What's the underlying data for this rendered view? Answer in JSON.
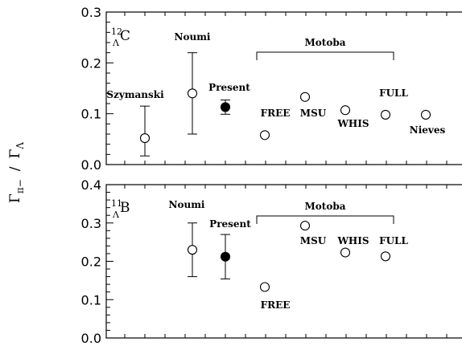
{
  "chart_data": {
    "type": "scatter",
    "ylabel": {
      "gamma": "Γ",
      "sub_pi": "π−",
      "slash": "/",
      "sub_lambda": "Λ"
    },
    "panels": [
      {
        "nucleus": {
          "mass": "12",
          "hyperon": "Λ",
          "element": "C"
        },
        "ylim": [
          0,
          0.3
        ],
        "yticks": [
          "0.0",
          "0.1",
          "0.2",
          "0.3"
        ],
        "bracket_label": "Motoba",
        "points": [
          {
            "label": "Szymanski",
            "y": 0.052,
            "err_lo": 0.035,
            "err_hi": 0.063,
            "filled": false
          },
          {
            "label": "Noumi",
            "y": 0.14,
            "err_lo": 0.08,
            "err_hi": 0.08,
            "filled": false
          },
          {
            "label": "Present",
            "y": 0.113,
            "err_lo": 0.014,
            "err_hi": 0.014,
            "filled": true
          },
          {
            "label": "FREE",
            "y": 0.058,
            "filled": false
          },
          {
            "label": "MSU",
            "y": 0.133,
            "filled": false
          },
          {
            "label": "WHIS",
            "y": 0.107,
            "filled": false
          },
          {
            "label": "FULL",
            "y": 0.098,
            "filled": false
          },
          {
            "label": "Nieves",
            "y": 0.098,
            "filled": false
          }
        ]
      },
      {
        "nucleus": {
          "mass": "11",
          "hyperon": "Λ",
          "element": "B"
        },
        "ylim": [
          0,
          0.4
        ],
        "yticks": [
          "0.0",
          "0.1",
          "0.2",
          "0.3",
          "0.4"
        ],
        "bracket_label": "Motoba",
        "points": [
          {
            "label": "Noumi",
            "y": 0.23,
            "err_lo": 0.07,
            "err_hi": 0.07,
            "filled": false
          },
          {
            "label": "Present",
            "y": 0.212,
            "err_lo": 0.058,
            "err_hi": 0.058,
            "filled": true
          },
          {
            "label": "FREE",
            "y": 0.133,
            "filled": false
          },
          {
            "label": "MSU",
            "y": 0.293,
            "filled": false
          },
          {
            "label": "WHIS",
            "y": 0.223,
            "filled": false
          },
          {
            "label": "FULL",
            "y": 0.213,
            "filled": false
          }
        ]
      }
    ]
  }
}
